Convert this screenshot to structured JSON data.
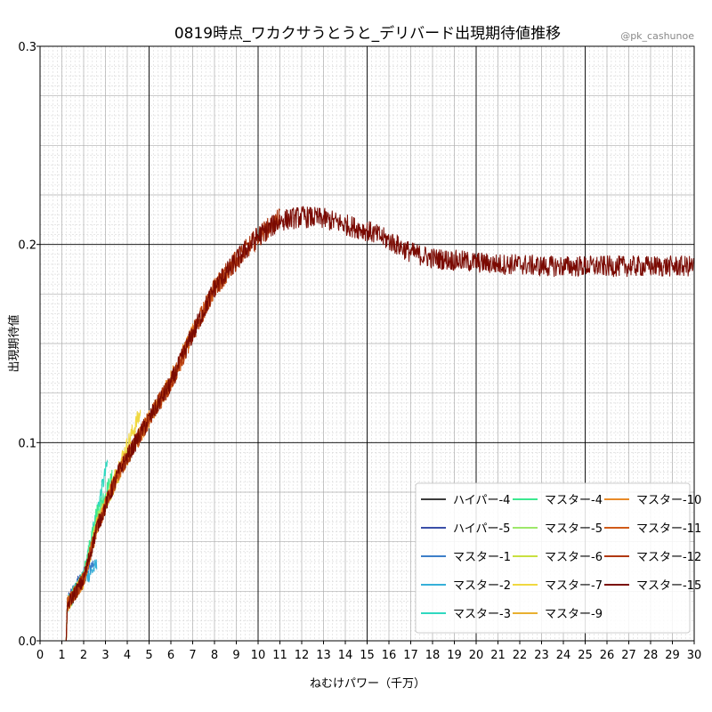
{
  "chart_data": {
    "type": "line",
    "title": "0819時点_ワカクサうとうと_デリバード出現期待値推移",
    "credit": "@pk_cashunoe",
    "xlabel": "ねむけパワー（千万）",
    "ylabel": "出現期待値",
    "xlim": [
      0,
      30
    ],
    "ylim": [
      0,
      0.3
    ],
    "x_ticks": [
      0,
      1,
      2,
      3,
      4,
      5,
      6,
      7,
      8,
      9,
      10,
      11,
      12,
      13,
      14,
      15,
      16,
      17,
      18,
      19,
      20,
      21,
      22,
      23,
      24,
      25,
      26,
      27,
      28,
      29,
      30
    ],
    "y_ticks": [
      0.0,
      0.1,
      0.2,
      0.3
    ],
    "y_tick_labels": [
      "0.0",
      "0.1",
      "0.2",
      "0.3"
    ],
    "grid": true,
    "legend_position": "lower-right",
    "series": [
      {
        "name": "ハイパー-4",
        "color": "#3b3b3b",
        "x_end": 1.9,
        "points": [
          [
            0,
            0
          ],
          [
            1.2,
            0
          ],
          [
            1.25,
            0.018
          ],
          [
            1.5,
            0.022
          ],
          [
            1.9,
            0.03
          ]
        ]
      },
      {
        "name": "ハイパー-5",
        "color": "#3a4fa8",
        "x_end": 2.2,
        "points": [
          [
            0,
            0
          ],
          [
            1.2,
            0
          ],
          [
            1.25,
            0.019
          ],
          [
            1.6,
            0.027
          ],
          [
            2.2,
            0.036
          ]
        ]
      },
      {
        "name": "マスター-1",
        "color": "#3d7fc8",
        "x_end": 2.5,
        "points": [
          [
            0,
            0
          ],
          [
            1.2,
            0
          ],
          [
            1.25,
            0.018
          ],
          [
            1.8,
            0.03
          ],
          [
            2.5,
            0.04
          ]
        ]
      },
      {
        "name": "マスター-2",
        "color": "#36b0d8",
        "x_end": 2.6,
        "points": [
          [
            0,
            0
          ],
          [
            1.2,
            0
          ],
          [
            1.25,
            0.018
          ],
          [
            1.8,
            0.028
          ],
          [
            2.6,
            0.038
          ]
        ]
      },
      {
        "name": "マスター-3",
        "color": "#2fd8c0",
        "x_end": 3.1,
        "points": [
          [
            0,
            0
          ],
          [
            1.2,
            0
          ],
          [
            1.25,
            0.018
          ],
          [
            2.0,
            0.032
          ],
          [
            2.5,
            0.06
          ],
          [
            3.1,
            0.09
          ]
        ]
      },
      {
        "name": "マスター-4",
        "color": "#3ce890",
        "x_end": 3.3,
        "points": [
          [
            0,
            0
          ],
          [
            1.2,
            0
          ],
          [
            1.25,
            0.018
          ],
          [
            2.0,
            0.032
          ],
          [
            2.5,
            0.062
          ],
          [
            3.3,
            0.082
          ]
        ]
      },
      {
        "name": "マスター-5",
        "color": "#9ee86a",
        "x_end": 3.6,
        "points": [
          [
            0,
            0
          ],
          [
            1.2,
            0
          ],
          [
            1.25,
            0.018
          ],
          [
            2.0,
            0.031
          ],
          [
            2.6,
            0.06
          ],
          [
            3.6,
            0.085
          ]
        ]
      },
      {
        "name": "マスター-6",
        "color": "#c8e040",
        "x_end": 4.0,
        "points": [
          [
            0,
            0
          ],
          [
            1.2,
            0
          ],
          [
            1.25,
            0.018
          ],
          [
            2.0,
            0.031
          ],
          [
            2.6,
            0.058
          ],
          [
            4.0,
            0.094
          ]
        ]
      },
      {
        "name": "マスター-7",
        "color": "#f0d840",
        "x_end": 4.6,
        "points": [
          [
            0,
            0
          ],
          [
            1.2,
            0
          ],
          [
            1.25,
            0.018
          ],
          [
            2.0,
            0.031
          ],
          [
            2.6,
            0.057
          ],
          [
            3.6,
            0.088
          ],
          [
            4.6,
            0.115
          ]
        ]
      },
      {
        "name": "マスター-9",
        "color": "#e8b030",
        "x_end": 5.0,
        "points": [
          [
            0,
            0
          ],
          [
            1.2,
            0
          ],
          [
            1.25,
            0.018
          ],
          [
            2.0,
            0.031
          ],
          [
            2.6,
            0.057
          ],
          [
            3.6,
            0.085
          ],
          [
            5.0,
            0.112
          ]
        ]
      },
      {
        "name": "マスター-10",
        "color": "#e88a28",
        "x_end": 7.0,
        "points": [
          [
            0,
            0
          ],
          [
            1.2,
            0
          ],
          [
            1.25,
            0.018
          ],
          [
            2.0,
            0.031
          ],
          [
            2.6,
            0.057
          ],
          [
            3.6,
            0.085
          ],
          [
            5.0,
            0.112
          ],
          [
            6.0,
            0.132
          ],
          [
            7.0,
            0.155
          ]
        ]
      },
      {
        "name": "マスター-11",
        "color": "#d05a18",
        "x_end": 9.0,
        "points": [
          [
            0,
            0
          ],
          [
            1.2,
            0
          ],
          [
            1.25,
            0.018
          ],
          [
            2.0,
            0.031
          ],
          [
            2.6,
            0.057
          ],
          [
            3.6,
            0.085
          ],
          [
            5.0,
            0.112
          ],
          [
            6.0,
            0.13
          ],
          [
            7.0,
            0.155
          ],
          [
            8.0,
            0.178
          ],
          [
            9.0,
            0.192
          ]
        ]
      },
      {
        "name": "マスター-12",
        "color": "#b03810",
        "x_end": 11.0,
        "points": [
          [
            0,
            0
          ],
          [
            1.2,
            0
          ],
          [
            1.25,
            0.018
          ],
          [
            2.0,
            0.031
          ],
          [
            2.6,
            0.057
          ],
          [
            3.6,
            0.085
          ],
          [
            5.0,
            0.112
          ],
          [
            6.0,
            0.13
          ],
          [
            7.0,
            0.155
          ],
          [
            8.0,
            0.178
          ],
          [
            9.0,
            0.192
          ],
          [
            10.0,
            0.204
          ],
          [
            11.0,
            0.213
          ]
        ]
      },
      {
        "name": "マスター-15",
        "color": "#7a0a02",
        "x_end": 30.0,
        "points": [
          [
            0,
            0
          ],
          [
            1.2,
            0
          ],
          [
            1.25,
            0.018
          ],
          [
            2.0,
            0.031
          ],
          [
            2.6,
            0.057
          ],
          [
            3.6,
            0.085
          ],
          [
            5.0,
            0.112
          ],
          [
            6.0,
            0.13
          ],
          [
            7.0,
            0.155
          ],
          [
            8.0,
            0.178
          ],
          [
            9.0,
            0.192
          ],
          [
            10.0,
            0.204
          ],
          [
            11.0,
            0.212
          ],
          [
            12.0,
            0.214
          ],
          [
            13.0,
            0.213
          ],
          [
            14.0,
            0.21
          ],
          [
            15.0,
            0.207
          ],
          [
            16.0,
            0.202
          ],
          [
            17.0,
            0.196
          ],
          [
            18.0,
            0.193
          ],
          [
            19.0,
            0.192
          ],
          [
            20.0,
            0.191
          ],
          [
            21.0,
            0.19
          ],
          [
            22.0,
            0.19
          ],
          [
            23.0,
            0.189
          ],
          [
            24.0,
            0.189
          ],
          [
            25.0,
            0.189
          ],
          [
            26.0,
            0.189
          ],
          [
            27.0,
            0.189
          ],
          [
            28.0,
            0.189
          ],
          [
            29.0,
            0.189
          ],
          [
            30.0,
            0.189
          ]
        ]
      }
    ]
  }
}
